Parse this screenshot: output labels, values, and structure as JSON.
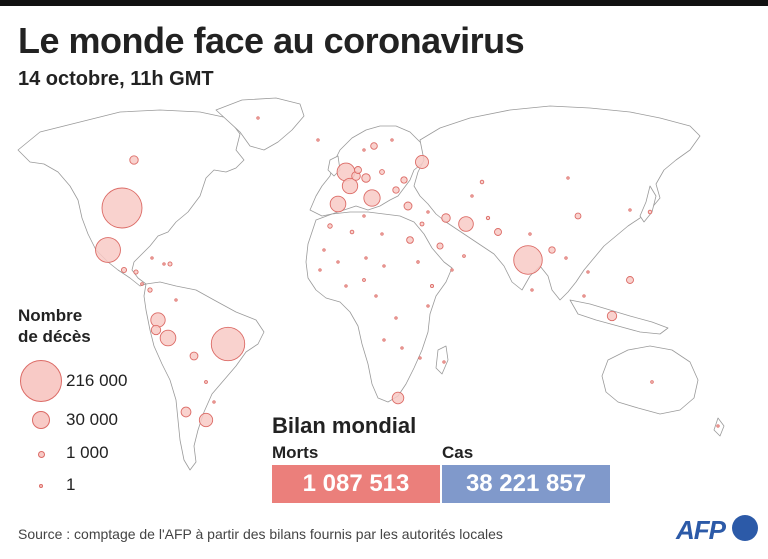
{
  "header": {
    "title": "Le monde face au coronavirus",
    "subtitle": "14 octobre, 11h GMT"
  },
  "legend": {
    "title_line1": "Nombre",
    "title_line2": "de décès",
    "items": [
      {
        "label": "216 000",
        "value": 216000
      },
      {
        "label": "30 000",
        "value": 30000
      },
      {
        "label": "1 000",
        "value": 1000
      },
      {
        "label": "1",
        "value": 1
      }
    ]
  },
  "bilan": {
    "title": "Bilan mondial",
    "morts_label": "Morts",
    "morts_value": "1 087 513",
    "cas_label": "Cas",
    "cas_value": "38 221 857"
  },
  "footer": {
    "source": "Source : comptage de l'AFP à partir des bilans fournis par les autorités locales",
    "logo_text": "AFP"
  },
  "colors": {
    "bubble_fill": "#f8cac6",
    "bubble_stroke": "#dc6b66",
    "morts_box": "#eb7f7b",
    "cas_box": "#8099cb",
    "land_stroke": "#9a9a9a",
    "afp_blue": "#2c5aa8"
  },
  "map_bubbles": [
    {
      "place": "États-Unis",
      "deaths": 216000
    },
    {
      "place": "Brésil",
      "deaths": 151000
    },
    {
      "place": "Inde",
      "deaths": 110000
    },
    {
      "place": "Mexique",
      "deaths": 84000
    },
    {
      "place": "Royaume-Uni",
      "deaths": 43000
    },
    {
      "place": "Italie",
      "deaths": 36000
    },
    {
      "place": "Pérou",
      "deaths": 33000
    },
    {
      "place": "Espagne",
      "deaths": 33000
    },
    {
      "place": "France",
      "deaths": 32000
    },
    {
      "place": "Iran",
      "deaths": 29000
    },
    {
      "place": "Colombie",
      "deaths": 28000
    },
    {
      "place": "Argentine",
      "deaths": 24000
    },
    {
      "place": "Russie",
      "deaths": 23000
    },
    {
      "place": "Afrique du Sud",
      "deaths": 18000
    },
    {
      "place": "Chili",
      "deaths": 13000
    },
    {
      "place": "Indonésie",
      "deaths": 12000
    },
    {
      "place": "Équateur",
      "deaths": 12000
    },
    {
      "place": "Belgique",
      "deaths": 10000
    },
    {
      "place": "Irak",
      "deaths": 9800
    },
    {
      "place": "Bolivie",
      "deaths": 8400
    },
    {
      "place": "Allemagne",
      "deaths": 9700
    },
    {
      "place": "Canada",
      "deaths": 9600
    },
    {
      "place": "Turquie",
      "deaths": 8600
    },
    {
      "place": "Philippines",
      "deaths": 6600
    },
    {
      "place": "Pays-Bas",
      "deaths": 6600
    },
    {
      "place": "Pakistan",
      "deaths": 6600
    },
    {
      "place": "Égypte",
      "deaths": 6100
    },
    {
      "place": "Bangladesh",
      "deaths": 5600
    },
    {
      "place": "Suède",
      "deaths": 5900
    },
    {
      "place": "Roumanie",
      "deaths": 5600
    },
    {
      "place": "Ukraine",
      "deaths": 5500
    },
    {
      "place": "Pologne",
      "deaths": 3100
    },
    {
      "place": "Guatemala",
      "deaths": 3500
    },
    {
      "place": "Honduras",
      "deaths": 2400
    },
    {
      "place": "Arabie saoudite",
      "deaths": 5100
    },
    {
      "place": "Panama",
      "deaths": 2500
    },
    {
      "place": "Chine",
      "deaths": 4700
    },
    {
      "place": "Japon",
      "deaths": 1700
    },
    {
      "place": "Kazakhstan",
      "deaths": 1700
    },
    {
      "place": "Algérie",
      "deaths": 1800
    },
    {
      "place": "Maroc",
      "deaths": 2700
    },
    {
      "place": "Australie",
      "deaths": 900
    },
    {
      "place": "Éthiopie",
      "deaths": 1300
    },
    {
      "place": "Nigeria",
      "deaths": 1100
    },
    {
      "place": "Kenya",
      "deaths": 780
    },
    {
      "place": "Venezuela",
      "deaths": 700
    },
    {
      "place": "Paraguay",
      "deaths": 1100
    },
    {
      "place": "Cuba",
      "deaths": 120
    },
    {
      "place": "Corée du Sud",
      "deaths": 430
    },
    {
      "place": "Islande",
      "deaths": 10
    },
    {
      "place": "Afghanistan",
      "deaths": 1500
    },
    {
      "place": "Népal",
      "deaths": 800
    },
    {
      "place": "Ouzbékistan",
      "deaths": 500
    },
    {
      "place": "Soudan",
      "deaths": 830
    },
    {
      "place": "Yémen",
      "deaths": 590
    },
    {
      "place": "Israël",
      "deaths": 2100
    },
    {
      "place": "Tunisie",
      "deaths": 600
    },
    {
      "place": "Cameroun",
      "deaths": 420
    },
    {
      "place": "Ghana",
      "deaths": 310
    },
    {
      "place": "Sénégal",
      "deaths": 310
    },
    {
      "place": "Congo RD",
      "deaths": 300
    },
    {
      "place": "Madagascar",
      "deaths": 230
    },
    {
      "place": "Zambie",
      "deaths": 340
    },
    {
      "place": "Mozambique",
      "deaths": 70
    },
    {
      "place": "Angola",
      "deaths": 200
    },
    {
      "place": "Libye",
      "deaths": 500
    },
    {
      "place": "Myanmar",
      "deaths": 800
    },
    {
      "place": "Malaisie",
      "deaths": 150
    },
    {
      "place": "Norvège",
      "deaths": 280
    },
    {
      "place": "Finlande",
      "deaths": 350
    },
    {
      "place": "Costa Rica",
      "deaths": 1000
    },
    {
      "place": "Rép. dominicaine",
      "deaths": 2200
    },
    {
      "place": "Haïti",
      "deaths": 230
    },
    {
      "place": "Uruguay",
      "deaths": 50
    },
    {
      "place": "Nouvelle-Zélande",
      "deaths": 25
    },
    {
      "place": "Groenland",
      "deaths": 1
    },
    {
      "place": "Vietnam",
      "deaths": 35
    },
    {
      "place": "Sri Lanka",
      "deaths": 13
    },
    {
      "place": "Mongolie",
      "deaths": 1
    },
    {
      "place": "Mali",
      "deaths": 130
    },
    {
      "place": "Tchad",
      "deaths": 98
    },
    {
      "place": "Niger",
      "deaths": 69
    },
    {
      "place": "Mauritanie",
      "deaths": 160
    },
    {
      "place": "Oman",
      "deaths": 1000
    },
    {
      "place": "Syrie",
      "deaths": 230
    }
  ]
}
